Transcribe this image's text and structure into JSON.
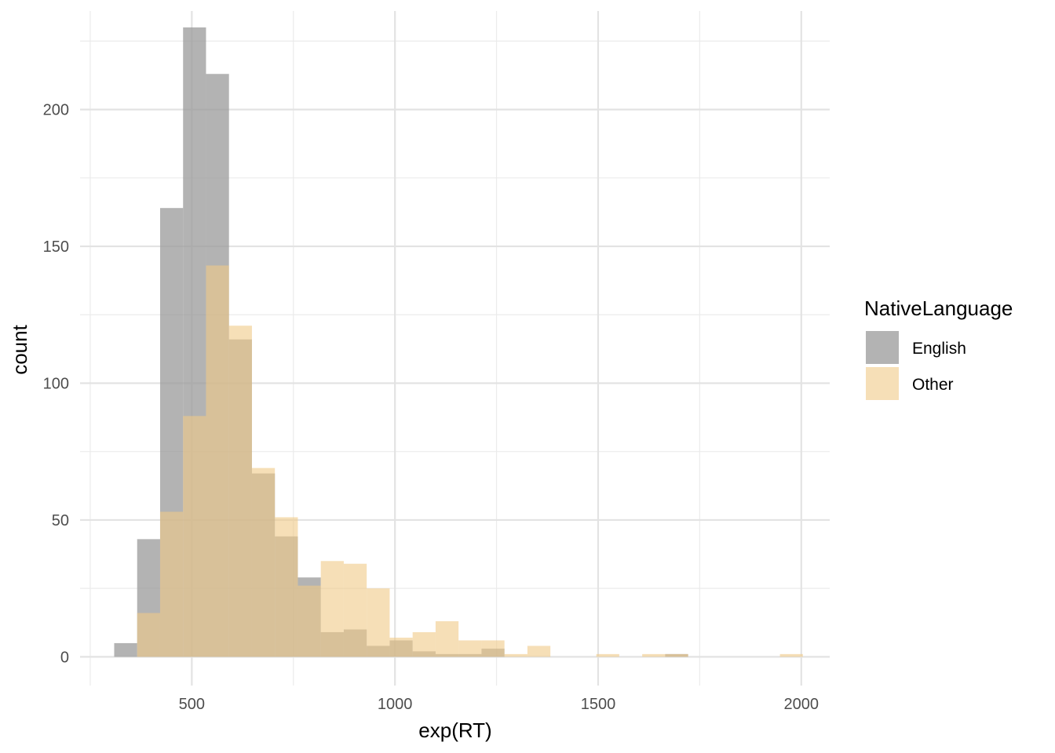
{
  "chart_data": {
    "type": "bar",
    "subtype": "overlapping histogram",
    "title": "",
    "xlabel": "exp(RT)",
    "ylabel": "count",
    "xlim": [
      225,
      2070
    ],
    "ylim": [
      -10.5,
      236
    ],
    "x_ticks": [
      500,
      1000,
      1500,
      2000
    ],
    "x_tick_labels": [
      "500",
      "1000",
      "1500",
      "2000"
    ],
    "y_ticks": [
      0,
      50,
      100,
      150,
      200
    ],
    "y_tick_labels": [
      "0",
      "50",
      "100",
      "150",
      "200"
    ],
    "grid": true,
    "bin_width": 56.5,
    "bin_starts": [
      309,
      365.5,
      422,
      478.5,
      535,
      591.5,
      648,
      704.5,
      761,
      817.5,
      874,
      930.5,
      987,
      1043.5,
      1100,
      1156.5,
      1213,
      1269.5,
      1326,
      1382.5,
      1439,
      1495.5,
      1552,
      1608.5,
      1665,
      1721.5,
      1778,
      1834.5,
      1891,
      1947.5
    ],
    "series": [
      {
        "name": "English",
        "color": "#999999",
        "opacity": 0.75,
        "values": [
          5,
          43,
          164,
          230,
          213,
          116,
          67,
          44,
          29,
          9,
          10,
          4,
          6,
          2,
          1,
          1,
          3,
          0,
          0,
          0,
          0,
          0,
          0,
          0,
          1,
          0,
          0,
          0,
          0,
          0
        ]
      },
      {
        "name": "Other",
        "color": "#f0c987",
        "opacity": 0.6,
        "values": [
          0,
          16,
          53,
          88,
          143,
          121,
          69,
          51,
          26,
          35,
          34,
          25,
          7,
          9,
          13,
          6,
          6,
          1,
          4,
          0,
          0,
          1,
          0,
          1,
          1,
          0,
          0,
          0,
          0,
          1
        ]
      }
    ],
    "legend": {
      "title": "NativeLanguage",
      "position": "right",
      "items": [
        "English",
        "Other"
      ]
    }
  }
}
